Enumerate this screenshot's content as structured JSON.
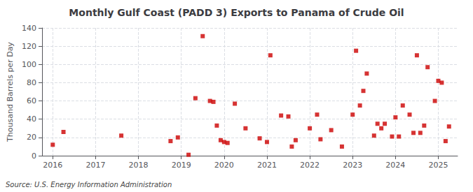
{
  "chart_data": {
    "type": "scatter",
    "title": "Monthly Gulf Coast (PADD 3) Exports to Panama of Crude Oil",
    "ylabel": "Thousand Barrels per Day",
    "annotation": "Source: U.S. Energy Information Administration",
    "color": "#cc0000",
    "marker": "square",
    "grid": true,
    "xlim": [
      2015.75,
      2025.45
    ],
    "xticks": [
      2016,
      2017,
      2018,
      2019,
      2020,
      2021,
      2022,
      2023,
      2024,
      2025
    ],
    "ylim": [
      0,
      140
    ],
    "yticks": [
      0,
      20,
      40,
      60,
      80,
      100,
      120,
      140
    ],
    "x": [
      2016.0,
      2016.25,
      2017.6,
      2018.75,
      2018.92,
      2019.17,
      2019.33,
      2019.5,
      2019.67,
      2019.75,
      2019.83,
      2019.92,
      2020.0,
      2020.08,
      2020.25,
      2020.5,
      2020.83,
      2021.0,
      2021.08,
      2021.33,
      2021.5,
      2021.58,
      2021.67,
      2022.0,
      2022.17,
      2022.25,
      2022.5,
      2022.75,
      2023.0,
      2023.08,
      2023.17,
      2023.25,
      2023.33,
      2023.5,
      2023.58,
      2023.67,
      2023.75,
      2023.92,
      2024.0,
      2024.08,
      2024.17,
      2024.33,
      2024.42,
      2024.5,
      2024.58,
      2024.67,
      2024.75,
      2024.92,
      2025.0,
      2025.08,
      2025.17,
      2025.25
    ],
    "values": [
      12,
      26,
      22,
      16,
      20,
      1,
      63,
      131,
      60,
      59,
      33,
      17,
      15,
      14,
      57,
      30,
      19,
      15,
      110,
      44,
      43,
      10,
      17,
      30,
      45,
      18,
      28,
      10,
      45,
      115,
      55,
      71,
      90,
      22,
      35,
      30,
      35,
      21,
      42,
      21,
      55,
      45,
      25,
      110,
      25,
      33,
      97,
      60,
      82,
      80,
      16,
      32
    ]
  }
}
